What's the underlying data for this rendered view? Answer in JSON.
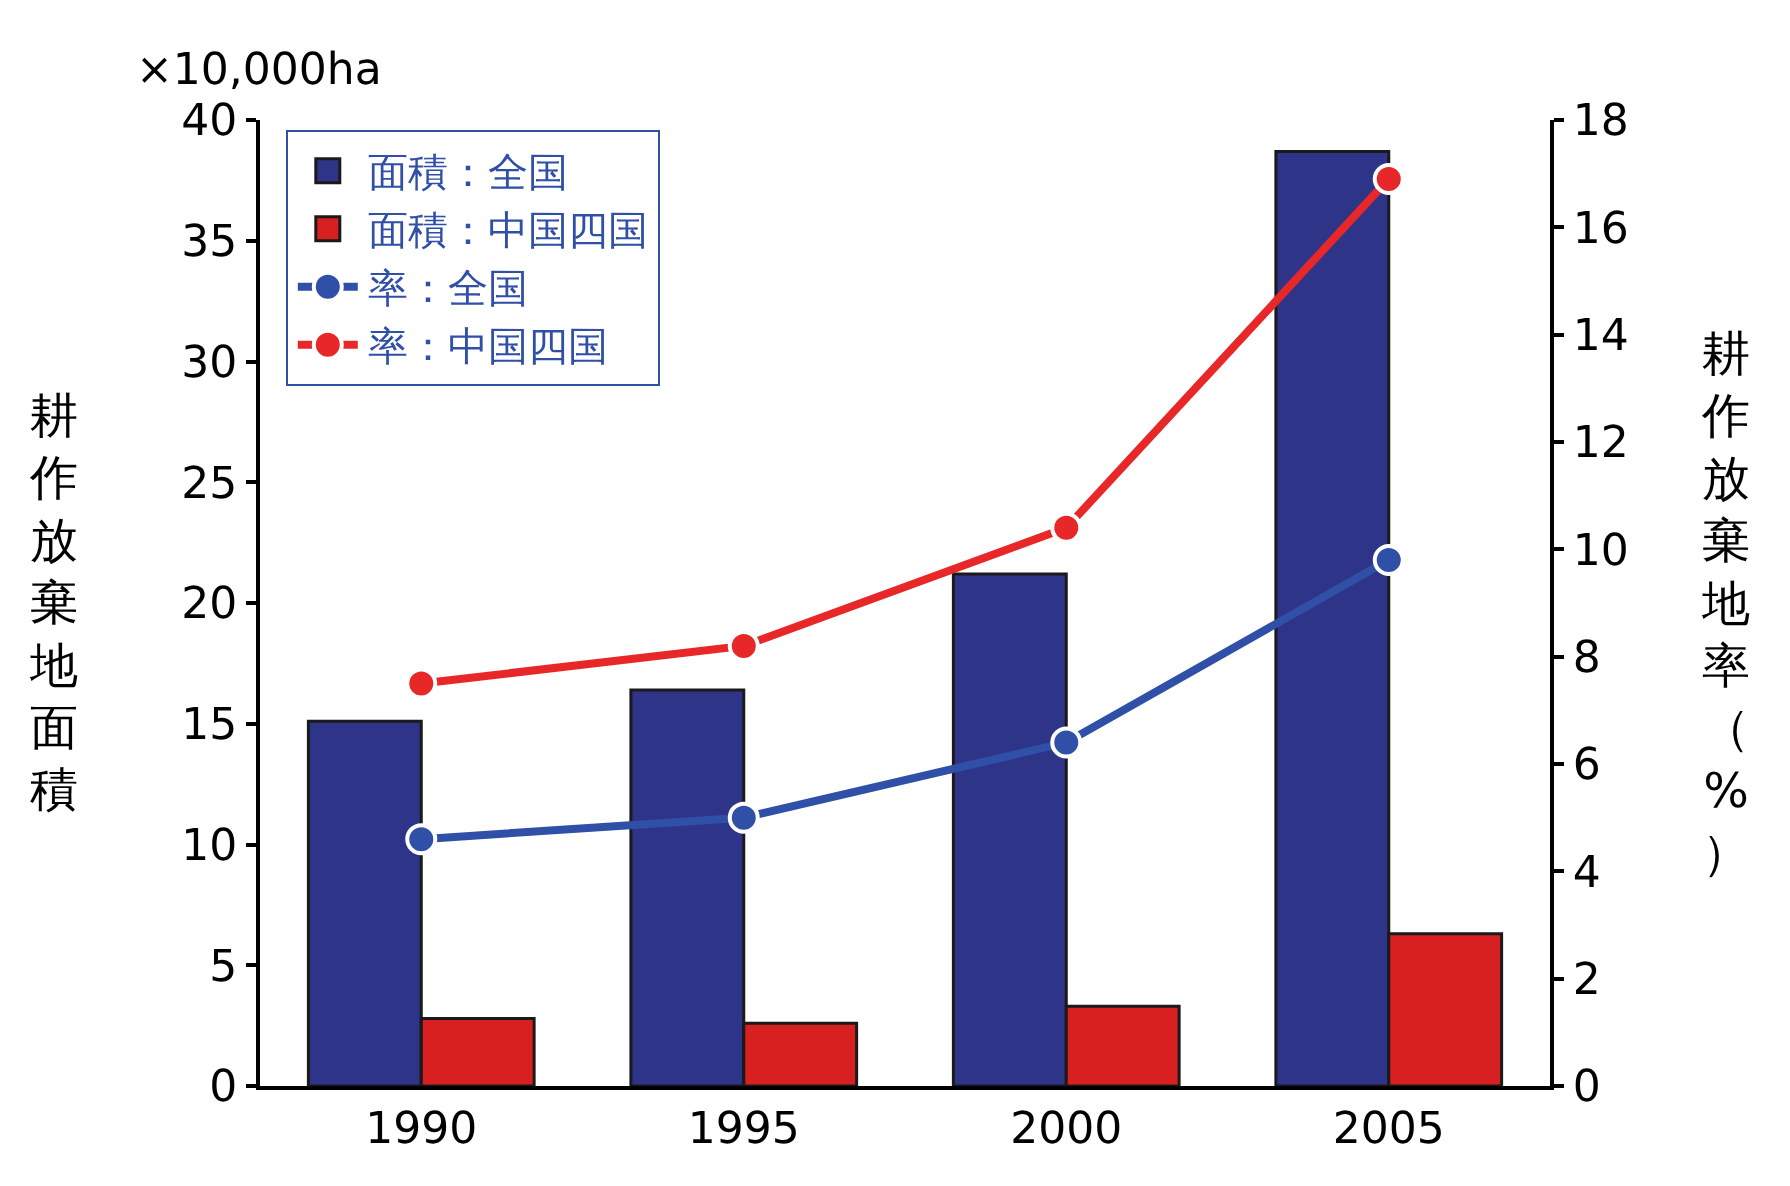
{
  "chart_data": {
    "type": "bar",
    "categories": [
      "1990",
      "1995",
      "2000",
      "2005"
    ],
    "ylabel": "耕作放棄地面積",
    "y2label": "耕作放棄地率（%）",
    "annotations": [
      "×10,000ha"
    ],
    "series": [
      {
        "name": "面積：全国",
        "color": "#2e3488",
        "values": [
          15.1,
          16.4,
          21.2,
          38.7
        ]
      },
      {
        "name": "面積：中国四国",
        "color": "#d82020",
        "values": [
          2.8,
          2.6,
          3.3,
          6.3
        ]
      },
      {
        "name": "率：全国",
        "type": "line",
        "axis": "y2",
        "color": "#3050a8",
        "values": [
          4.6,
          5.0,
          6.4,
          9.8
        ]
      },
      {
        "name": "率：中国四国",
        "type": "line",
        "axis": "y2",
        "color": "#e82828",
        "values": [
          7.5,
          8.2,
          10.4,
          16.9
        ]
      }
    ],
    "ylim": [
      0,
      40
    ],
    "yticks": [
      0,
      5,
      10,
      15,
      20,
      25,
      30,
      35,
      40
    ],
    "y2lim": [
      0,
      18
    ],
    "y2ticks": [
      0,
      2,
      4,
      6,
      8,
      10,
      12,
      14,
      16,
      18
    ],
    "legend": "top left",
    "marker": "circle",
    "line_style": "solid"
  }
}
